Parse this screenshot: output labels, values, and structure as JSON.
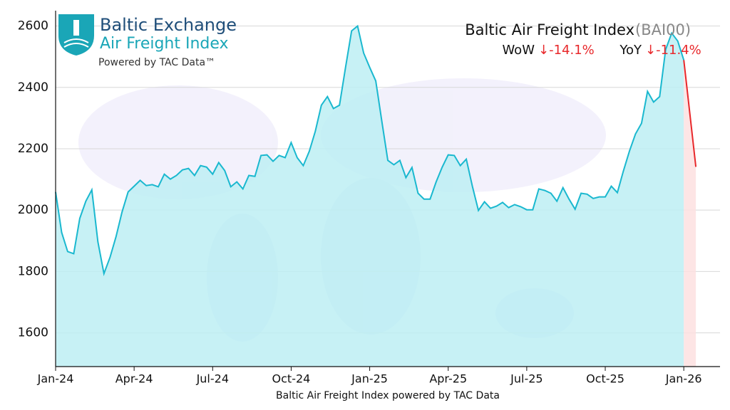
{
  "brand": {
    "name": "Baltic Exchange",
    "product": "Air Freight Index",
    "powered": "Powered by TAC Data™"
  },
  "stats": {
    "wow_label": "WoW",
    "wow_text": "↓-14.1%",
    "yoy_label": "YoY",
    "yoy_text": "↓-11.4%"
  },
  "chart_data": {
    "type": "line",
    "title": "Baltic Air Freight Index",
    "code": "(BAI00)",
    "xlabel": "Baltic Air Freight Index powered by TAC Data",
    "xlim": [
      0,
      110
    ],
    "ylim": [
      1490,
      2650
    ],
    "xticks": [
      {
        "value": 0,
        "label": "Jan-24"
      },
      {
        "value": 13,
        "label": "Apr-24"
      },
      {
        "value": 26,
        "label": "Jul-24"
      },
      {
        "value": 39,
        "label": "Oct-24"
      },
      {
        "value": 52,
        "label": "Jan-25"
      },
      {
        "value": 65,
        "label": "Apr-25"
      },
      {
        "value": 78,
        "label": "Jul-25"
      },
      {
        "value": 91,
        "label": "Oct-25"
      },
      {
        "value": 104,
        "label": "Jan-26"
      }
    ],
    "yticks": [
      1600,
      1800,
      2000,
      2200,
      2400,
      2600
    ],
    "grid": true,
    "series": [
      {
        "color": "#1ab8cf",
        "fill": "#bdeef3",
        "x": [
          0,
          1,
          2,
          3,
          4,
          5,
          6,
          7,
          8,
          9,
          10,
          11,
          12,
          13,
          14,
          15,
          16,
          17,
          18,
          19,
          20,
          21,
          22,
          23,
          24,
          25,
          26,
          27,
          28,
          29,
          30,
          31,
          32,
          33,
          34,
          35,
          36,
          37,
          38,
          39,
          40,
          41,
          42,
          43,
          44,
          45,
          46,
          47,
          48,
          49,
          50,
          51,
          52,
          53,
          54,
          55,
          56,
          57,
          58,
          59,
          60,
          61,
          62,
          63,
          64,
          65,
          66,
          67,
          68,
          69,
          70,
          71,
          72,
          73,
          74,
          75,
          76,
          77,
          78,
          79,
          80,
          81,
          82,
          83,
          84,
          85,
          86,
          87,
          88,
          89,
          90,
          91,
          92,
          93,
          94,
          95,
          96,
          97,
          98,
          99,
          100,
          101,
          102,
          103,
          104
        ],
        "values": [
          2059,
          1927,
          1865,
          1858,
          1973,
          2029,
          2066,
          1897,
          1793,
          1846,
          1913,
          1994,
          2059,
          2078,
          2097,
          2080,
          2083,
          2076,
          2117,
          2101,
          2113,
          2131,
          2136,
          2113,
          2145,
          2140,
          2117,
          2155,
          2129,
          2076,
          2092,
          2069,
          2113,
          2110,
          2178,
          2180,
          2159,
          2178,
          2171,
          2220,
          2171,
          2145,
          2192,
          2257,
          2342,
          2370,
          2331,
          2342,
          2465,
          2584,
          2600,
          2512,
          2465,
          2421,
          2291,
          2162,
          2148,
          2162,
          2106,
          2139,
          2055,
          2036,
          2036,
          2092,
          2140,
          2180,
          2178,
          2145,
          2166,
          2078,
          1999,
          2027,
          2006,
          2013,
          2025,
          2008,
          2018,
          2011,
          2001,
          2001,
          2069,
          2064,
          2055,
          2029,
          2073,
          2036,
          2003,
          2055,
          2052,
          2038,
          2043,
          2043,
          2078,
          2057,
          2127,
          2192,
          2248,
          2283,
          2387,
          2352,
          2370,
          2523,
          2577,
          2551,
          2489
        ]
      },
      {
        "color": "#e8282b",
        "fill": "#fde0e0",
        "x": [
          104,
          106
        ],
        "values": [
          2489,
          2141
        ]
      }
    ]
  }
}
